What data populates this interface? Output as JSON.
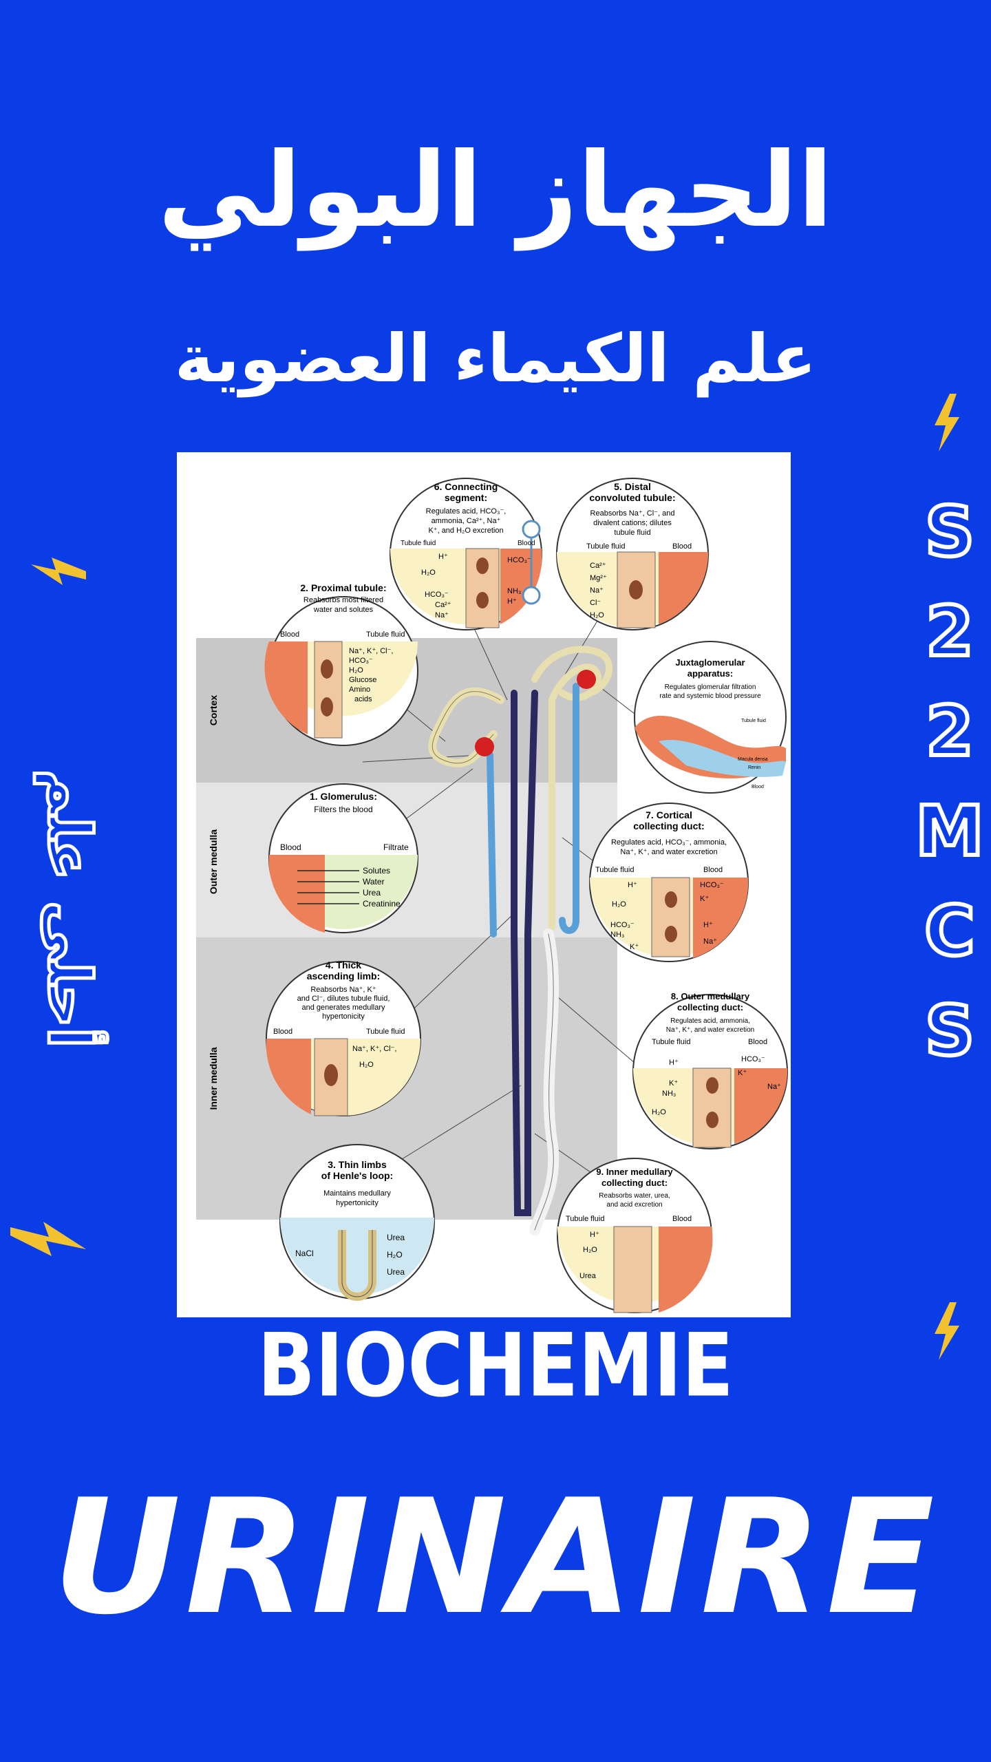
{
  "header": {
    "title_ar": "الجهاز البولي",
    "subtitle_ar": "علم الكيماء العضوية"
  },
  "side": {
    "right_letters": [
      "S",
      "2",
      "2",
      "M",
      "C",
      "S"
    ],
    "left_text_ar": "أحلى علم"
  },
  "figure": {
    "zones": [
      "Cortex",
      "Outer medulla",
      "Inner medulla"
    ],
    "circles": {
      "c1": {
        "title1": "1. Glomerulus:",
        "desc": [
          "Filters the blood"
        ],
        "left": "Blood",
        "right": "Filtrate",
        "items": [
          "Solutes",
          "Water",
          "Urea",
          "Creatinine"
        ]
      },
      "c2": {
        "title1": "2. Proximal tubule:",
        "desc": [
          "Reabsorbs most filtered",
          "water and solutes"
        ],
        "left": "Blood",
        "right": "Tubule fluid",
        "items": [
          "Na⁺, K⁺, Cl⁻,",
          "HCO₃⁻",
          "H₂O",
          "Glucose",
          "Amino",
          "acids"
        ]
      },
      "c3": {
        "title1": "3. Thin limbs",
        "title2": "of Henle's loop:",
        "desc": [
          "Maintains medullary",
          "hypertonicity"
        ],
        "items": [
          "NaCl",
          "Urea",
          "H₂O",
          "Urea"
        ]
      },
      "c4": {
        "title1": "4. Thick",
        "title2": "ascending limb:",
        "desc": [
          "Reabsorbs Na⁺, K⁺",
          "and Cl⁻, dilutes tubule fluid,",
          "and generates medullary",
          "hypertonicity"
        ],
        "left": "Blood",
        "right": "Tubule fluid",
        "items": [
          "Na⁺, K⁺, Cl⁻,",
          "H₂O"
        ]
      },
      "c5": {
        "title1": "5. Distal",
        "title2": "convoluted tubule:",
        "desc": [
          "Reabsorbs Na⁺, Cl⁻, and",
          "divalent cations; dilutes",
          "tubule fluid"
        ],
        "left": "Tubule fluid",
        "right": "Blood",
        "items": [
          "Ca²⁺",
          "Mg²⁺",
          "Na⁺",
          "Cl⁻",
          "H₂O"
        ]
      },
      "c6": {
        "title1": "6. Connecting",
        "title2": "segment:",
        "desc": [
          "Regulates acid, HCO₃⁻,",
          "ammonia, Ca²⁺, Na⁺",
          "K⁺, and H₂O excretion"
        ],
        "left": "Tubule fluid",
        "right": "Blood",
        "items": [
          "H⁺",
          "H₂O",
          "HCO₃⁻",
          "Ca²⁺",
          "Na⁺",
          "HCO₃⁻",
          "NH₃",
          "H⁺"
        ]
      },
      "c7": {
        "title1": "7. Cortical",
        "title2": "collecting duct:",
        "desc": [
          "Regulates acid, HCO₃⁻, ammonia,",
          "Na⁺, K⁺, and water excretion"
        ],
        "left": "Tubule fluid",
        "right": "Blood",
        "items": [
          "H⁺",
          "H₂O",
          "HCO₃⁻",
          "NH₃",
          "K⁺",
          "HCO₃⁻",
          "K⁺",
          "H⁺",
          "Na⁺"
        ]
      },
      "c8": {
        "title1": "8. Outer medullary",
        "title2": "collecting duct:",
        "desc": [
          "Regulates acid, ammonia,",
          "Na⁺, K⁺, and water excretion"
        ],
        "left": "Tubule fluid",
        "right": "Blood",
        "items": [
          "H⁺",
          "K⁺",
          "NH₃",
          "H₂O",
          "HCO₃⁻",
          "K⁺",
          "Na⁺"
        ]
      },
      "c9": {
        "title1": "9. Inner medullary",
        "title2": "collecting duct:",
        "desc": [
          "Reabsorbs water, urea,",
          "and acid excretion"
        ],
        "left": "Tubule fluid",
        "right": "Blood",
        "items": [
          "H⁺",
          "H₂O",
          "Urea"
        ]
      },
      "jga": {
        "title1": "Juxtaglomerular",
        "title2": "apparatus:",
        "desc": [
          "Regulates glomerular filtration",
          "rate and systemic blood pressure"
        ],
        "items": [
          "Tubule fluid",
          "Macula densa",
          "Renin",
          "Blood"
        ]
      }
    }
  },
  "footer": {
    "biochemie": "BIOCHEMIE",
    "urinaire": "URINAIRE"
  },
  "colors": {
    "background": "#0a3de6",
    "text": "#ffffff",
    "lightning": "#f2c230"
  }
}
